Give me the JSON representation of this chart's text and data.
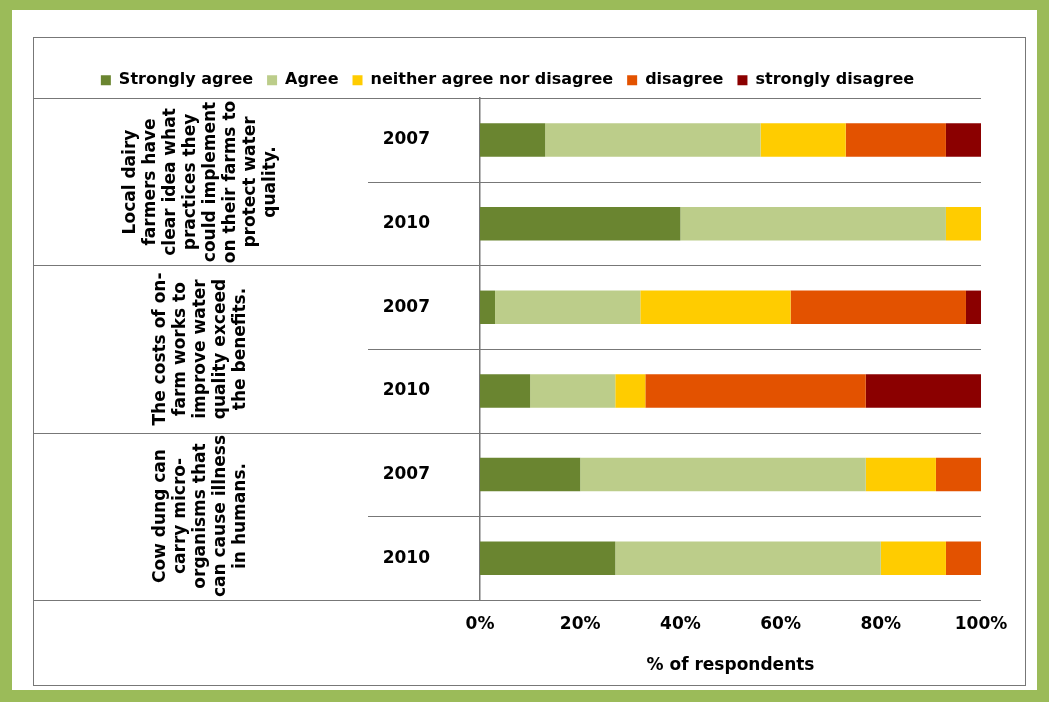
{
  "chart_data": {
    "type": "bar",
    "orientation": "horizontal",
    "stacked": true,
    "categories": [
      "2007",
      "2010",
      "2007",
      "2010",
      "2007",
      "2010"
    ],
    "series": [
      {
        "name": "Strongly agree",
        "color": "#6a8530",
        "values": [
          13,
          40,
          3,
          10,
          20,
          27
        ]
      },
      {
        "name": "Agree",
        "color": "#bccd8a",
        "values": [
          43,
          53,
          29,
          17,
          57,
          53
        ]
      },
      {
        "name": "neither agree nor disagree",
        "color": "#ffcc00",
        "values": [
          17,
          7,
          30,
          6,
          14,
          13
        ]
      },
      {
        "name": "disagree",
        "color": "#e35200",
        "values": [
          20,
          0,
          35,
          44,
          9,
          7
        ]
      },
      {
        "name": "strongly disagree",
        "color": "#8b0000",
        "values": [
          7,
          0,
          3,
          23,
          0,
          0
        ]
      }
    ],
    "xlim": [
      0,
      100
    ],
    "xticks": [
      {
        "value": 0,
        "label": "0%"
      },
      {
        "value": 20,
        "label": "20%"
      },
      {
        "value": 40,
        "label": "40%"
      },
      {
        "value": 60,
        "label": "60%"
      },
      {
        "value": 80,
        "label": "80%"
      },
      {
        "value": 100,
        "label": "100%"
      }
    ],
    "xlabel": "% of respondents",
    "legend": "top",
    "grid": false,
    "annotations": [
      "Local dairy farmers have clear idea what practices they could implement on their farms to protect water quality.",
      "The costs of on-farm works to improve water quality exceed the benefits.",
      "Cow dung can carry micro-organisms that can cause illness in humans."
    ]
  }
}
